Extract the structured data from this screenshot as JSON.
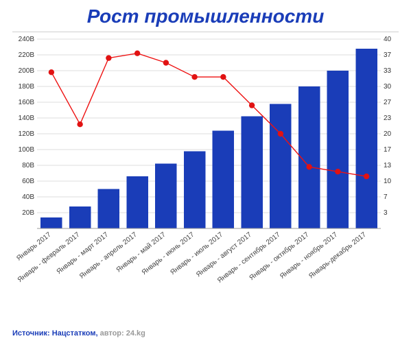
{
  "title": "Рост промышленности",
  "title_color": "#1a3db8",
  "title_fontsize": 28,
  "rule_color": "#cfcfcf",
  "source_label": "Источник: ",
  "source_text": "Нацстатком, ",
  "author_label": "автор: ",
  "author_text": "24.kg",
  "source_label_color": "#1a3db8",
  "author_color": "#999999",
  "chart": {
    "type": "bar+line",
    "background_color": "#ffffff",
    "grid_color": "#dddddd",
    "categories": [
      "Январь 2017",
      "Январь - февраль 2017",
      "Январь - март 2017",
      "Январь - апрель 2017",
      "Январь - май 2017",
      "Январь - июнь 2017",
      "Январь - июль 2017",
      "Январь - август 2017",
      "Январь - сентябрь 2017",
      "Январь - октябрь 2017",
      "Январь - ноябрь 2017",
      "Январь-декабрь 2017"
    ],
    "bar_values": [
      14,
      28,
      50,
      66,
      82,
      98,
      124,
      142,
      158,
      180,
      200,
      228
    ],
    "bar_color": "#1a3db8",
    "bar_width": 0.76,
    "left_axis": {
      "min": 0,
      "max": 240,
      "ticks": [
        0,
        20,
        40,
        60,
        80,
        100,
        120,
        140,
        160,
        180,
        200,
        220,
        240
      ],
      "tick_labels": [
        "",
        "20B",
        "40B",
        "60B",
        "80B",
        "100B",
        "120B",
        "140B",
        "160B",
        "180B",
        "200B",
        "220B",
        "240B"
      ],
      "label_fontsize": 10
    },
    "line_values": [
      33,
      22,
      36,
      37,
      35,
      32,
      32,
      26,
      20,
      13,
      12,
      11
    ],
    "line_color": "#e11212",
    "marker_color": "#e11212",
    "marker_radius": 4.2,
    "right_axis": {
      "min": 0,
      "max": 40,
      "ticks": [
        0,
        3,
        7,
        10,
        13,
        17,
        20,
        23,
        27,
        30,
        33,
        37,
        40
      ],
      "tick_labels": [
        "",
        "3",
        "7",
        "10",
        "13",
        "17",
        "20",
        "23",
        "27",
        "30",
        "33",
        "37",
        "40"
      ],
      "label_fontsize": 10
    },
    "xlabel_fontsize": 10,
    "xlabel_rotation": -38
  }
}
